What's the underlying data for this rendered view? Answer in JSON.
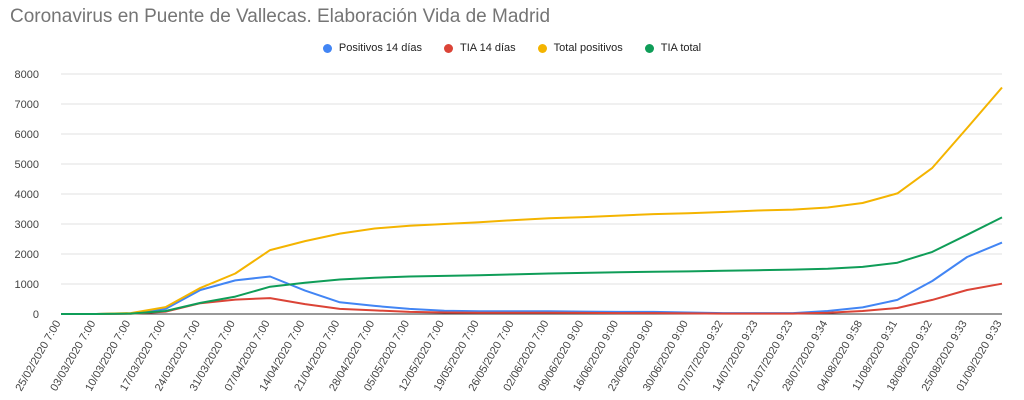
{
  "chart_data": {
    "type": "line",
    "title": "Coronavirus en Puente de Vallecas. Elaboración Vida de Madrid",
    "xlabel": "",
    "ylabel": "",
    "ylim": [
      0,
      8000
    ],
    "y_ticks": [
      0,
      1000,
      2000,
      3000,
      4000,
      5000,
      6000,
      7000,
      8000
    ],
    "grid": true,
    "legend_position": "top",
    "categories": [
      "25/02/2020 7:00",
      "03/03/2020 7:00",
      "10/03/2020 7:00",
      "17/03/2020 7:00",
      "24/03/2020 7:00",
      "31/03/2020 7:00",
      "07/04/2020 7:00",
      "14/04/2020 7:00",
      "21/04/2020 7:00",
      "28/04/2020 7:00",
      "05/05/2020 7:00",
      "12/05/2020 7:00",
      "19/05/2020 7:00",
      "26/05/2020 7:00",
      "02/06/2020 7:00",
      "09/06/2020 9:00",
      "16/06/2020 9:00",
      "23/06/2020 9:00",
      "30/06/2020 9:00",
      "07/07/2020 9:32",
      "14/07/2020 9:23",
      "21/07/2020 9:23",
      "28/07/2020 9:34",
      "04/08/2020 9:58",
      "11/08/2020 9:31",
      "18/08/2020 9:32",
      "25/08/2020 9:33",
      "01/09/2020 9:33"
    ],
    "series": [
      {
        "name": "Positivos 14 días",
        "color": "#4285f4",
        "values": [
          0,
          0,
          20,
          170,
          800,
          1120,
          1250,
          780,
          390,
          270,
          170,
          110,
          90,
          90,
          90,
          80,
          70,
          70,
          50,
          30,
          30,
          30,
          100,
          220,
          470,
          1100,
          1900,
          2380
        ]
      },
      {
        "name": "TIA 14 días",
        "color": "#db4437",
        "values": [
          0,
          0,
          10,
          80,
          360,
          480,
          530,
          330,
          170,
          120,
          70,
          50,
          40,
          40,
          40,
          35,
          30,
          30,
          20,
          15,
          15,
          15,
          40,
          100,
          200,
          470,
          800,
          1010
        ]
      },
      {
        "name": "Total positivos",
        "color": "#f4b400",
        "values": [
          0,
          0,
          30,
          230,
          870,
          1350,
          2130,
          2430,
          2680,
          2850,
          2940,
          3000,
          3060,
          3130,
          3190,
          3230,
          3280,
          3330,
          3360,
          3400,
          3450,
          3480,
          3550,
          3700,
          4020,
          4870,
          6200,
          7550
        ]
      },
      {
        "name": "TIA total",
        "color": "#0f9d58",
        "values": [
          0,
          0,
          15,
          100,
          370,
          580,
          910,
          1040,
          1150,
          1210,
          1250,
          1270,
          1290,
          1320,
          1350,
          1370,
          1390,
          1410,
          1420,
          1440,
          1460,
          1480,
          1510,
          1570,
          1710,
          2070,
          2640,
          3220
        ]
      }
    ]
  }
}
